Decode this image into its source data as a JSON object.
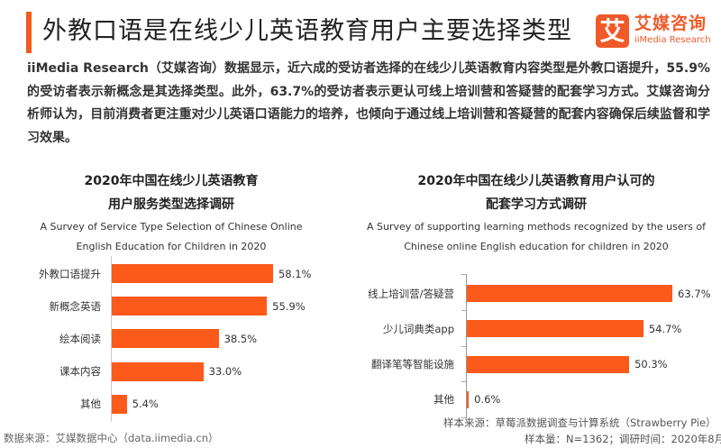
{
  "header": {
    "title": "外教口语是在线少儿英语教育用户主要选择类型",
    "accent_color": "#f25a1e",
    "logo": {
      "mark": "艾",
      "name_cn": "艾媒咨询",
      "name_en": "iiMedia Research",
      "color": "#f05a28"
    }
  },
  "summary": "iiMedia Research（艾媒咨询）数据显示，近六成的受访者选择的在线少儿英语教育内容类型是外教口语提升，55.9%的受访者表示新概念是其选择类型。此外，63.7%的受访者表示更认可线上培训营和答疑营的配套学习方式。艾媒咨询分析师认为，目前消费者更注重对少儿英语口语能力的培养，也倾向于通过线上培训营和答疑营的配套内容确保后续监督和学习效果。",
  "chart_data": [
    {
      "type": "bar",
      "orientation": "horizontal",
      "title": "2020年中国在线少儿英语教育用户服务类型选择调研",
      "title_lines": [
        "2020年中国在线少儿英语教育",
        "用户服务类型选择调研"
      ],
      "subtitle_lines": [
        "A Survey of Service Type Selection of Chinese Online",
        "English Education for Children in 2020"
      ],
      "categories": [
        "外教口语提升",
        "新概念英语",
        "绘本阅读",
        "课本内容",
        "其他"
      ],
      "values": [
        58.1,
        55.9,
        38.5,
        33.0,
        5.4
      ],
      "value_labels": [
        "58.1%",
        "55.9%",
        "38.5%",
        "33.0%",
        "5.4%"
      ],
      "unit": "%",
      "bar_color": "#fb5a1a",
      "xlabel": "",
      "ylabel": "",
      "xlim": [
        0,
        70
      ],
      "grid": false,
      "legend": "none"
    },
    {
      "type": "bar",
      "orientation": "horizontal",
      "title": "2020年中国在线少儿英语教育用户认可的配套学习方式调研",
      "title_lines": [
        "2020年中国在线少儿英语教育用户认可的",
        "配套学习方式调研"
      ],
      "subtitle_lines": [
        "A Survey of supporting learning methods recognized by the users of",
        "Chinese online English education for children in 2020"
      ],
      "categories": [
        "线上培训营/答疑营",
        "少儿词典类app",
        "翻译笔等智能设施",
        "其他"
      ],
      "values": [
        63.7,
        54.7,
        50.3,
        0.6
      ],
      "value_labels": [
        "63.7%",
        "54.7%",
        "50.3%",
        "0.6%"
      ],
      "unit": "%",
      "bar_color": "#fb5a1a",
      "xlabel": "",
      "ylabel": "",
      "xlim": [
        0,
        70
      ],
      "grid": false,
      "legend": "none"
    }
  ],
  "footer": {
    "source": "数据来源：艾媒数据中心（data.iimedia.cn）",
    "sample_source": "样本来源：草莓派数据调查与计算系统（Strawberry Pie）",
    "sample_info": "样本量：N=1362；调研时间：2020年8月"
  }
}
